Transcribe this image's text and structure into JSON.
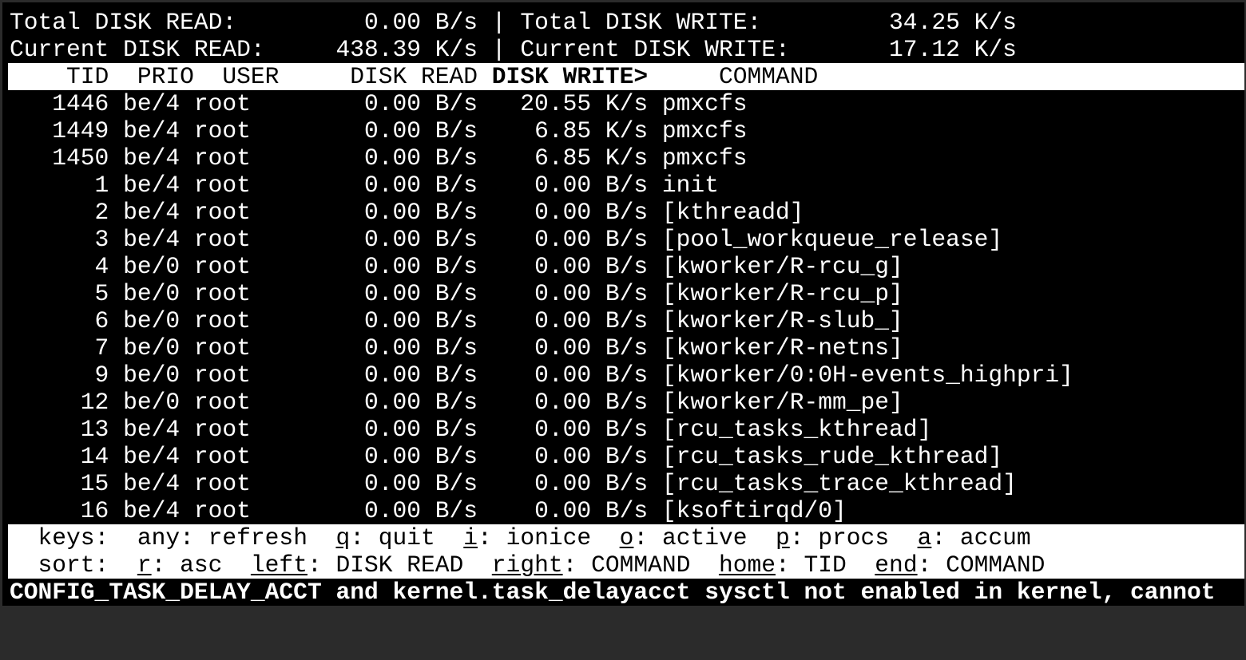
{
  "summary": {
    "total_read_label": "Total DISK READ:",
    "total_read_value": "0.00 B/s",
    "total_write_label": "Total DISK WRITE:",
    "total_write_value": "34.25 K/s",
    "current_read_label": "Current DISK READ:",
    "current_read_value": "438.39 K/s",
    "current_write_label": "Current DISK WRITE:",
    "current_write_value": "17.12 K/s",
    "separator": "|"
  },
  "columns": {
    "tid": "TID",
    "prio": "PRIO",
    "user": "USER",
    "disk_read": "DISK READ",
    "disk_write": "DISK WRITE>",
    "command": "COMMAND",
    "sorted_column": "DISK WRITE"
  },
  "processes": [
    {
      "tid": "1446",
      "prio": "be/4",
      "user": "root",
      "read": "0.00 B/s",
      "write": "20.55 K/s",
      "command": "pmxcfs"
    },
    {
      "tid": "1449",
      "prio": "be/4",
      "user": "root",
      "read": "0.00 B/s",
      "write": "6.85 K/s",
      "command": "pmxcfs"
    },
    {
      "tid": "1450",
      "prio": "be/4",
      "user": "root",
      "read": "0.00 B/s",
      "write": "6.85 K/s",
      "command": "pmxcfs"
    },
    {
      "tid": "1",
      "prio": "be/4",
      "user": "root",
      "read": "0.00 B/s",
      "write": "0.00 B/s",
      "command": "init"
    },
    {
      "tid": "2",
      "prio": "be/4",
      "user": "root",
      "read": "0.00 B/s",
      "write": "0.00 B/s",
      "command": "[kthreadd]"
    },
    {
      "tid": "3",
      "prio": "be/4",
      "user": "root",
      "read": "0.00 B/s",
      "write": "0.00 B/s",
      "command": "[pool_workqueue_release]"
    },
    {
      "tid": "4",
      "prio": "be/0",
      "user": "root",
      "read": "0.00 B/s",
      "write": "0.00 B/s",
      "command": "[kworker/R-rcu_g]"
    },
    {
      "tid": "5",
      "prio": "be/0",
      "user": "root",
      "read": "0.00 B/s",
      "write": "0.00 B/s",
      "command": "[kworker/R-rcu_p]"
    },
    {
      "tid": "6",
      "prio": "be/0",
      "user": "root",
      "read": "0.00 B/s",
      "write": "0.00 B/s",
      "command": "[kworker/R-slub_]"
    },
    {
      "tid": "7",
      "prio": "be/0",
      "user": "root",
      "read": "0.00 B/s",
      "write": "0.00 B/s",
      "command": "[kworker/R-netns]"
    },
    {
      "tid": "9",
      "prio": "be/0",
      "user": "root",
      "read": "0.00 B/s",
      "write": "0.00 B/s",
      "command": "[kworker/0:0H-events_highpri]"
    },
    {
      "tid": "12",
      "prio": "be/0",
      "user": "root",
      "read": "0.00 B/s",
      "write": "0.00 B/s",
      "command": "[kworker/R-mm_pe]"
    },
    {
      "tid": "13",
      "prio": "be/4",
      "user": "root",
      "read": "0.00 B/s",
      "write": "0.00 B/s",
      "command": "[rcu_tasks_kthread]"
    },
    {
      "tid": "14",
      "prio": "be/4",
      "user": "root",
      "read": "0.00 B/s",
      "write": "0.00 B/s",
      "command": "[rcu_tasks_rude_kthread]"
    },
    {
      "tid": "15",
      "prio": "be/4",
      "user": "root",
      "read": "0.00 B/s",
      "write": "0.00 B/s",
      "command": "[rcu_tasks_trace_kthread]"
    },
    {
      "tid": "16",
      "prio": "be/4",
      "user": "root",
      "read": "0.00 B/s",
      "write": "0.00 B/s",
      "command": "[ksoftirqd/0]"
    }
  ],
  "footer": {
    "keys_label": "keys:",
    "keys": [
      {
        "key": "any",
        "sep": ": ",
        "label": "refresh",
        "underline": false
      },
      {
        "key": "q",
        "sep": ": ",
        "label": "quit",
        "underline": true
      },
      {
        "key": "i",
        "sep": ": ",
        "label": "ionice",
        "underline": true
      },
      {
        "key": "o",
        "sep": ": ",
        "label": "active",
        "underline": true
      },
      {
        "key": "p",
        "sep": ": ",
        "label": "procs",
        "underline": true
      },
      {
        "key": "a",
        "sep": ": ",
        "label": "accum",
        "underline": true
      }
    ],
    "sort_label": "sort:",
    "sort": [
      {
        "key": "r",
        "sep": ": ",
        "label": "asc",
        "underline": true
      },
      {
        "key": "left",
        "sep": ": ",
        "label": "DISK READ",
        "underline": true
      },
      {
        "key": "right",
        "sep": ": ",
        "label": "COMMAND",
        "underline": true
      },
      {
        "key": "home",
        "sep": ": ",
        "label": "TID",
        "underline": true
      },
      {
        "key": "end",
        "sep": ": ",
        "label": "COMMAND",
        "underline": true
      }
    ]
  },
  "status_message": "CONFIG_TASK_DELAY_ACCT and kernel.task_delayacct sysctl not enabled in kernel, cannot",
  "colors": {
    "background": "#000000",
    "foreground": "#ffffff",
    "frame": "#2b2b2b"
  }
}
